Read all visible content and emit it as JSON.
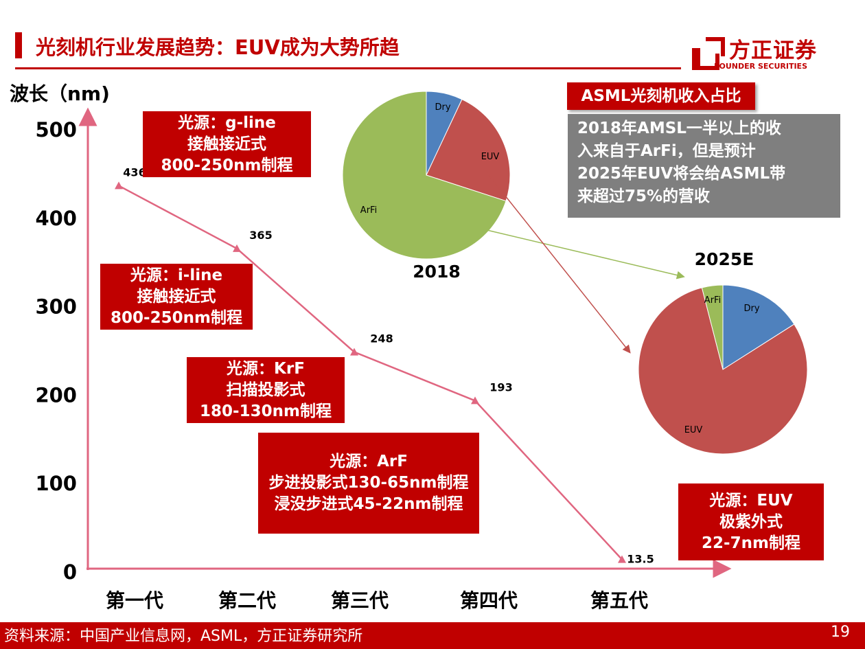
{
  "header": {
    "title": "光刻机行业发展趋势：EUV成为大势所趋",
    "logo_cn": "方正证券",
    "logo_en": "FOUNDER SECURITIES"
  },
  "chart_data": [
    {
      "type": "line",
      "ylabel": "波长（nm)",
      "yticks": [
        "500",
        "400",
        "300",
        "200",
        "100",
        "0"
      ],
      "ylim": [
        0,
        500
      ],
      "categories": [
        "第一代",
        "第二代",
        "第三代",
        "第四代",
        "第五代"
      ],
      "series": [
        {
          "values": [
            436,
            365,
            248,
            193,
            13.5
          ],
          "labels": [
            "436",
            "365",
            "248",
            "193",
            "13.5"
          ]
        }
      ],
      "annotations": [
        {
          "lines": [
            "光源：g-line",
            "接触接近式",
            "800-250nm制程"
          ]
        },
        {
          "lines": [
            "光源：i-line",
            "接触接近式",
            "800-250nm制程"
          ]
        },
        {
          "lines": [
            "光源：KrF",
            "扫描投影式",
            "180-130nm制程"
          ]
        },
        {
          "lines": [
            "光源：ArF",
            "步进投影式130-65nm制程",
            "浸没步进式45-22nm制程"
          ]
        },
        {
          "lines": [
            "光源：EUV",
            "极紫外式",
            "22-7nm制程"
          ]
        }
      ]
    },
    {
      "type": "pie",
      "title": "2018",
      "slices": [
        {
          "label": "Dry",
          "value": 7,
          "color": "#4f81bd"
        },
        {
          "label": "EUV",
          "value": 23,
          "color": "#c0504d"
        },
        {
          "label": "ArFi",
          "value": 70,
          "color": "#9bbb59"
        }
      ]
    },
    {
      "type": "pie",
      "title": "2025E",
      "slices": [
        {
          "label": "Dry",
          "value": 16,
          "color": "#4f81bd"
        },
        {
          "label": "EUV",
          "value": 80,
          "color": "#c0504d"
        },
        {
          "label": "ArFi",
          "value": 4,
          "color": "#9bbb59"
        }
      ]
    }
  ],
  "asml": {
    "label": "ASML光刻机收入占比",
    "note_lines": [
      "2018年AMSL一半以上的收",
      "入来自于ArFi，但是预计",
      "2025年EUV将会给ASML带",
      "来超过75%的营收"
    ]
  },
  "footer": {
    "source": "资料来源：中国产业信息网，ASML，方正证券研究所",
    "page": "19"
  },
  "colors": {
    "brand_red": "#c00000",
    "line_pink": "#e06680",
    "note_grey": "#7f7f7f",
    "arrow_green": "#9bbb59",
    "arrow_red": "#c0504d"
  }
}
